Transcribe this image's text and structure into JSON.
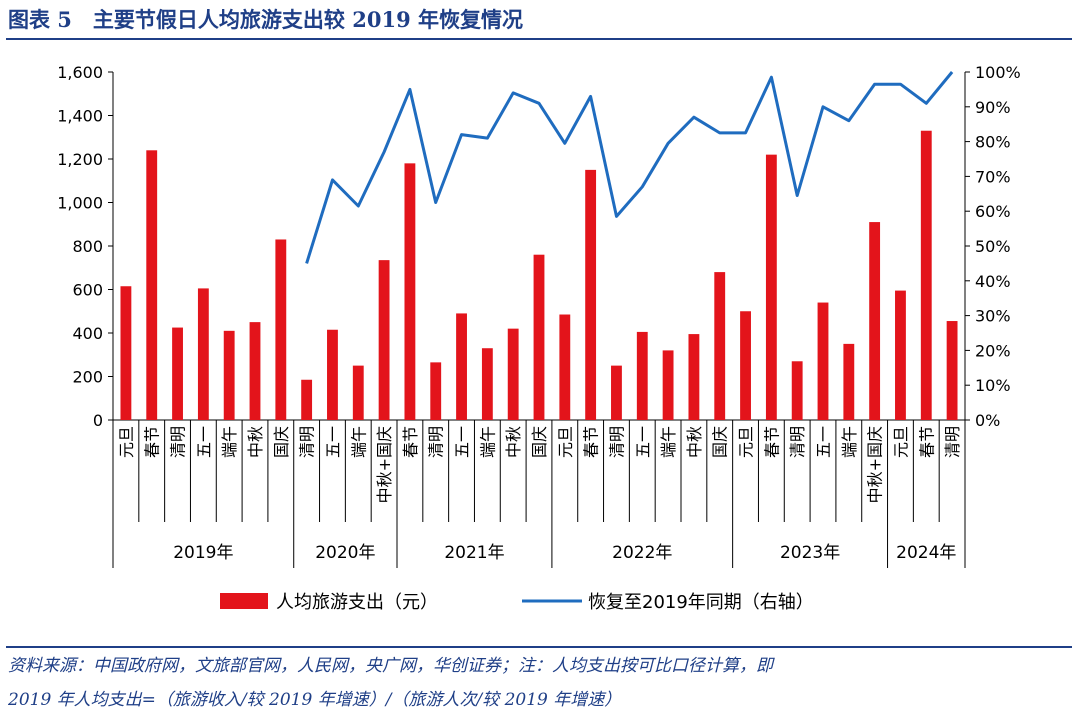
{
  "title": "图表 5　主要节假日人均旅游支出较 2019 年恢复情况",
  "source_note": {
    "line1": "资料来源：中国政府网，文旅部官网，人民网，央广网，华创证券；注：人均支出按可比口径计算，即",
    "line2": "2019 年人均支出=（旅游收入/较 2019 年增速）/（旅游人次/较 2019 年增速）"
  },
  "colors": {
    "bar": "#e3141b",
    "line": "#1f6cbf",
    "title": "#1f3f87"
  },
  "chart_data": {
    "type": "bar+line",
    "categories": [
      "元旦",
      "春节",
      "清明",
      "五一",
      "端午",
      "中秋",
      "国庆",
      "清明",
      "五一",
      "端午",
      "中秋+国庆",
      "春节",
      "清明",
      "五一",
      "端午",
      "中秋",
      "国庆",
      "元旦",
      "春节",
      "清明",
      "五一",
      "端午",
      "中秋",
      "国庆",
      "元旦",
      "春节",
      "清明",
      "五一",
      "端午",
      "中秋+国庆",
      "元旦",
      "春节",
      "清明"
    ],
    "year_groups": [
      {
        "label": "2019年",
        "start": 0,
        "end": 6
      },
      {
        "label": "2020年",
        "start": 7,
        "end": 10
      },
      {
        "label": "2021年",
        "start": 11,
        "end": 16
      },
      {
        "label": "2022年",
        "start": 17,
        "end": 23
      },
      {
        "label": "2023年",
        "start": 24,
        "end": 29
      },
      {
        "label": "2024年",
        "start": 30,
        "end": 32
      }
    ],
    "series": [
      {
        "name": "人均旅游支出（元）",
        "type": "bar",
        "axis": "left",
        "values": [
          615,
          1240,
          425,
          605,
          410,
          450,
          830,
          185,
          415,
          250,
          735,
          1180,
          265,
          490,
          330,
          420,
          760,
          485,
          1150,
          250,
          405,
          320,
          395,
          680,
          500,
          1220,
          270,
          540,
          350,
          910,
          595,
          1330,
          455
        ]
      },
      {
        "name": "恢复至2019年同期（右轴）",
        "type": "line",
        "axis": "right",
        "values": [
          null,
          null,
          null,
          null,
          null,
          null,
          null,
          45,
          69,
          61.5,
          77,
          95,
          62.5,
          82,
          81,
          94,
          91,
          79.5,
          93,
          58.5,
          67,
          79.5,
          87,
          82.5,
          82.5,
          98.5,
          64.5,
          90,
          86,
          96.5,
          96.5,
          91,
          100
        ]
      }
    ],
    "yleft": {
      "min": 0,
      "max": 1600,
      "ticks": [
        "0",
        "200",
        "400",
        "600",
        "800",
        "1,000",
        "1,200",
        "1,400",
        "1,600"
      ]
    },
    "yright": {
      "min": 0,
      "max": 100,
      "ticks": [
        "0%",
        "10%",
        "20%",
        "30%",
        "40%",
        "50%",
        "60%",
        "70%",
        "80%",
        "90%",
        "100%"
      ]
    },
    "legend_position": "bottom",
    "grid": false
  }
}
